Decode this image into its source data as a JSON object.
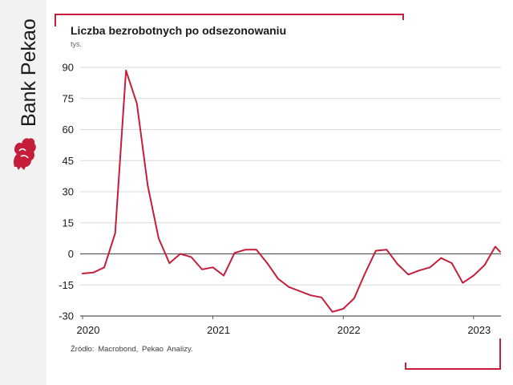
{
  "brand": {
    "name": "Bank Pekao",
    "colors": {
      "accent": "#c41e3a",
      "text": "#1a1a1a",
      "sidebar": "#f2f2f2",
      "line": "#c41e3a"
    }
  },
  "header": {
    "title": "Liczba bezrobotnych po odsezonowaniu",
    "subtitle": "tys."
  },
  "footer": {
    "source": "Źródło: Macrobond, Pekao Analizy."
  },
  "chart_data": {
    "type": "line",
    "title": "Liczba bezrobotnych po odsezonowaniu",
    "subtitle": "tys.",
    "xlabel": "",
    "ylabel": "",
    "ylim": [
      -30,
      90
    ],
    "xlim": [
      "2020-01",
      "2023-03"
    ],
    "y_ticks": [
      "90",
      "75",
      "60",
      "45",
      "30",
      "15",
      "0",
      "-15",
      "-30"
    ],
    "x_ticks": [
      "2020",
      "2021",
      "2022",
      "2023"
    ],
    "grid": "horizontal",
    "zero_line": true,
    "series": [
      {
        "color": "#c41e3a",
        "x": [
          "2020-01",
          "2020-02",
          "2020-03",
          "2020-04",
          "2020-05",
          "2020-06",
          "2020-07",
          "2020-08",
          "2020-09",
          "2020-10",
          "2020-11",
          "2020-12",
          "2021-01",
          "2021-02",
          "2021-03",
          "2021-04",
          "2021-05",
          "2021-06",
          "2021-07",
          "2021-08",
          "2021-09",
          "2021-10",
          "2021-11",
          "2021-12",
          "2022-01",
          "2022-02",
          "2022-03",
          "2022-04",
          "2022-05",
          "2022-06",
          "2022-07",
          "2022-08",
          "2022-09",
          "2022-10",
          "2022-11",
          "2022-12",
          "2023-01",
          "2023-02",
          "2023-03"
        ],
        "values": [
          -9.5,
          -9.0,
          -6.5,
          10,
          88.5,
          72.5,
          33,
          7.5,
          -4.5,
          0,
          -1.5,
          -7.5,
          -6.5,
          -10.5,
          0.5,
          2.0,
          2.0,
          -4.5,
          -12,
          -16,
          -18,
          -20,
          -21,
          -28,
          -26.5,
          -21.5,
          -9.5,
          1.5,
          2.0,
          -5,
          -10,
          -8,
          -6.5,
          -2,
          -4.5,
          -14,
          -10.5,
          -5.5,
          3.5
        ]
      }
    ]
  }
}
